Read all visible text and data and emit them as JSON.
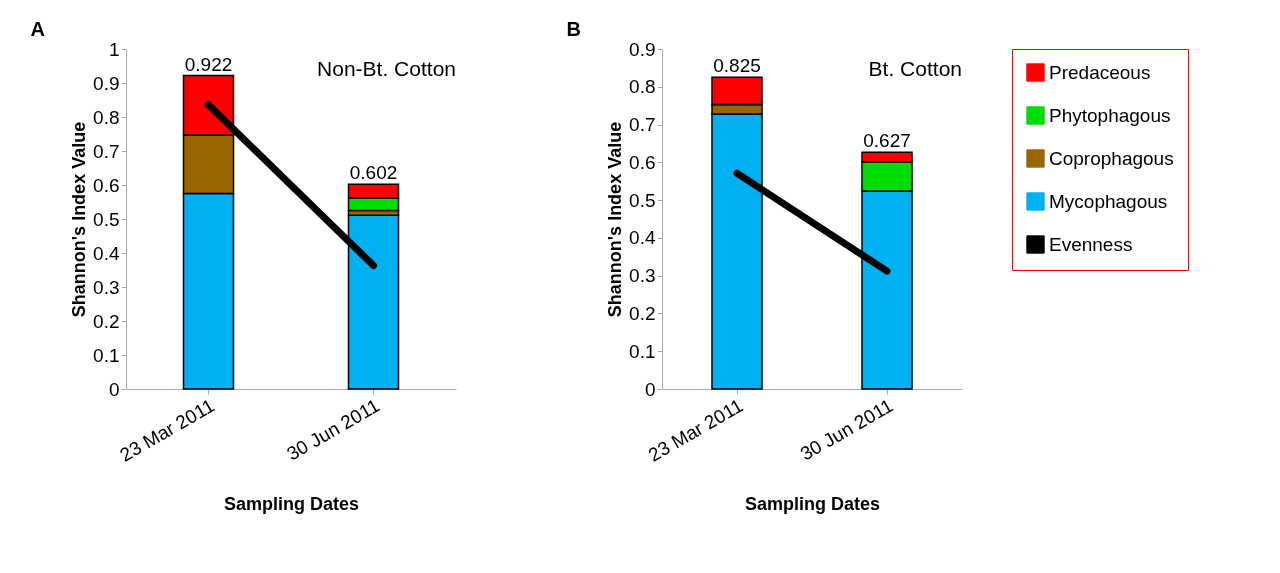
{
  "chart_data": [
    {
      "type": "bar",
      "title": "A",
      "annotations": [
        "Non-Bt. Cotton"
      ],
      "xlabel": "Sampling Dates",
      "ylabel": "Shannon's Index Value",
      "categories": [
        "23 Mar 2011",
        "30 Jun 2011"
      ],
      "stacked": true,
      "ylim": [
        0,
        1
      ],
      "yticks": [
        0,
        0.1,
        0.2,
        0.3,
        0.4,
        0.5,
        0.6,
        0.7,
        0.8,
        0.9,
        1
      ],
      "grid": false,
      "legend": false,
      "totals": [
        "0.922",
        "0.602"
      ],
      "series": [
        {
          "color": "#00b0f0",
          "values": [
            0.575,
            0.511
          ]
        },
        {
          "color": "#996600",
          "values": [
            0.172,
            0.014
          ]
        },
        {
          "color": "#00dd00",
          "values": [
            0,
            0.037
          ]
        },
        {
          "color": "#ff0000",
          "values": [
            0.175,
            0.04
          ]
        },
        {
          "type": "line",
          "color": "#000000",
          "values": [
            0.836,
            0.363
          ]
        }
      ]
    },
    {
      "type": "bar",
      "title": "B",
      "annotations": [
        "Bt. Cotton"
      ],
      "xlabel": "Sampling Dates",
      "ylabel": "Shannon's Index Value",
      "categories": [
        "23 Mar 2011",
        "30 Jun 2011"
      ],
      "stacked": true,
      "ylim": [
        0,
        0.9
      ],
      "yticks": [
        0,
        0.1,
        0.2,
        0.3,
        0.4,
        0.5,
        0.6,
        0.7,
        0.8,
        0.9
      ],
      "grid": false,
      "legend": "right",
      "totals": [
        "0.825",
        "0.627"
      ],
      "series": [
        {
          "name": "Mycophagous",
          "color": "#00b0f0",
          "values": [
            0.728,
            0.524
          ]
        },
        {
          "name": "Coprophagous",
          "color": "#996600",
          "values": [
            0.025,
            0
          ]
        },
        {
          "name": "Phytophagous",
          "color": "#00dd00",
          "values": [
            0,
            0.077
          ]
        },
        {
          "name": "Predaceous",
          "color": "#ff0000",
          "values": [
            0.072,
            0.026
          ]
        },
        {
          "name": "Evenness",
          "type": "line",
          "color": "#000000",
          "values": [
            0.571,
            0.312
          ]
        }
      ]
    }
  ]
}
